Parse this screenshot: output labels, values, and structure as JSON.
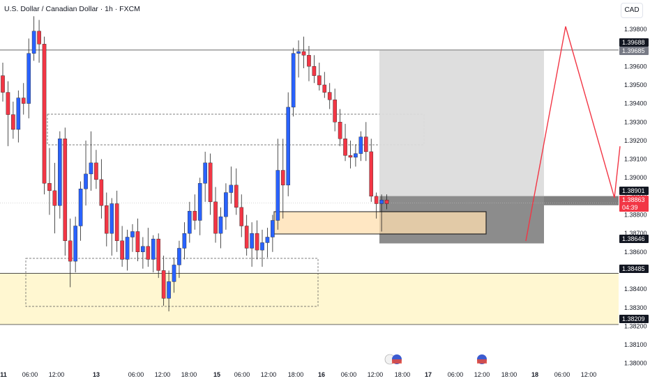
{
  "header": {
    "title": "U.S. Dollar / Canadian Dollar · 1h · FXCM",
    "currency": "CAD"
  },
  "colors": {
    "up": "#2962ff",
    "down": "#f23645",
    "demand_zone": "#fff7d1",
    "entry_zone": "#ffdfb0",
    "stop_zone": "#808080",
    "target_zone": "#dcdcdc",
    "projection": "#f23645"
  },
  "chart_data": {
    "type": "candlestick",
    "symbol": "USDCAD",
    "timeframe": "1h",
    "ylim": [
      1.3796,
      1.399
    ],
    "y_ticks": [
      "1.39800",
      "1.39700",
      "1.39600",
      "1.39500",
      "1.39400",
      "1.39300",
      "1.39200",
      "1.39100",
      "1.39000",
      "1.38900",
      "1.38800",
      "1.38700",
      "1.38600",
      "1.38500",
      "1.38400",
      "1.38300",
      "1.38200",
      "1.38100",
      "1.38000"
    ],
    "x_labels": [
      "11",
      "06:00",
      "12:00",
      "13",
      "06:00",
      "12:00",
      "18:00",
      "15",
      "06:00",
      "12:00",
      "18:00",
      "16",
      "06:00",
      "12:00",
      "18:00",
      "17",
      "06:00",
      "12:00",
      "18:00",
      "18",
      "06:00",
      "12:00"
    ],
    "price_tags": [
      {
        "value": "1.39688",
        "style": "dark"
      },
      {
        "value": "1.39685",
        "style": "gray"
      },
      {
        "value": "1.38901",
        "style": "dark"
      },
      {
        "value": "1.38863",
        "style": "red"
      },
      {
        "value": "04:39",
        "style": "red"
      },
      {
        "value": "1.38646",
        "style": "dark"
      },
      {
        "value": "1.38485",
        "style": "dark"
      },
      {
        "value": "1.38209",
        "style": "dark"
      }
    ],
    "levels": {
      "resistance": 1.39688,
      "support_top": 1.38485,
      "support_bottom": 1.38209,
      "current": 1.38863,
      "entry": 1.38901,
      "stop": 1.38646,
      "target": 1.39685
    },
    "candles": [
      [
        1.3955,
        1.3962,
        1.3941,
        1.3946
      ],
      [
        1.3946,
        1.3952,
        1.3917,
        1.3934
      ],
      [
        1.3934,
        1.3941,
        1.3921,
        1.3926
      ],
      [
        1.3926,
        1.3947,
        1.3919,
        1.3943
      ],
      [
        1.3943,
        1.3951,
        1.3934,
        1.394
      ],
      [
        1.394,
        1.3975,
        1.3932,
        1.3967
      ],
      [
        1.3967,
        1.3987,
        1.3963,
        1.3979
      ],
      [
        1.3979,
        1.3985,
        1.3962,
        1.3972
      ],
      [
        1.3972,
        1.3976,
        1.3891,
        1.3897
      ],
      [
        1.3897,
        1.3916,
        1.388,
        1.3893
      ],
      [
        1.3893,
        1.3908,
        1.387,
        1.3885
      ],
      [
        1.3885,
        1.3925,
        1.3878,
        1.3921
      ],
      [
        1.3921,
        1.3927,
        1.3858,
        1.3866
      ],
      [
        1.3866,
        1.3878,
        1.3841,
        1.3855
      ],
      [
        1.3855,
        1.3879,
        1.3849,
        1.3874
      ],
      [
        1.3874,
        1.3898,
        1.3866,
        1.3894
      ],
      [
        1.3894,
        1.392,
        1.3885,
        1.3902
      ],
      [
        1.3902,
        1.3925,
        1.3893,
        1.3908
      ],
      [
        1.3908,
        1.3915,
        1.3894,
        1.3899
      ],
      [
        1.3899,
        1.391,
        1.3878,
        1.3885
      ],
      [
        1.3885,
        1.3892,
        1.3863,
        1.387
      ],
      [
        1.387,
        1.3889,
        1.3858,
        1.3886
      ],
      [
        1.3886,
        1.3893,
        1.386,
        1.3866
      ],
      [
        1.3866,
        1.3874,
        1.3852,
        1.3856
      ],
      [
        1.3856,
        1.3872,
        1.385,
        1.3868
      ],
      [
        1.3868,
        1.3875,
        1.386,
        1.3871
      ],
      [
        1.3871,
        1.3878,
        1.3855,
        1.386
      ],
      [
        1.386,
        1.3868,
        1.3851,
        1.3863
      ],
      [
        1.3863,
        1.3873,
        1.3852,
        1.3856
      ],
      [
        1.3856,
        1.3869,
        1.3849,
        1.3867
      ],
      [
        1.3867,
        1.387,
        1.3846,
        1.385
      ],
      [
        1.385,
        1.3858,
        1.3831,
        1.3835
      ],
      [
        1.3835,
        1.385,
        1.3828,
        1.3844
      ],
      [
        1.3844,
        1.3857,
        1.3838,
        1.3853
      ],
      [
        1.3853,
        1.3866,
        1.3846,
        1.3862
      ],
      [
        1.3862,
        1.3876,
        1.3856,
        1.387
      ],
      [
        1.387,
        1.3887,
        1.3865,
        1.3882
      ],
      [
        1.3882,
        1.3891,
        1.3872,
        1.3877
      ],
      [
        1.3877,
        1.39,
        1.3869,
        1.3897
      ],
      [
        1.3897,
        1.3914,
        1.3887,
        1.3908
      ],
      [
        1.3908,
        1.3913,
        1.388,
        1.3887
      ],
      [
        1.3887,
        1.3895,
        1.3865,
        1.387
      ],
      [
        1.387,
        1.3884,
        1.3862,
        1.3879
      ],
      [
        1.3879,
        1.3897,
        1.3872,
        1.3892
      ],
      [
        1.3892,
        1.3906,
        1.3886,
        1.3896
      ],
      [
        1.3896,
        1.3905,
        1.388,
        1.3884
      ],
      [
        1.3884,
        1.3891,
        1.3868,
        1.3874
      ],
      [
        1.3874,
        1.388,
        1.3858,
        1.3862
      ],
      [
        1.3862,
        1.3876,
        1.3852,
        1.387
      ],
      [
        1.387,
        1.3877,
        1.3856,
        1.3861
      ],
      [
        1.3861,
        1.3872,
        1.3852,
        1.3865
      ],
      [
        1.3865,
        1.3873,
        1.3857,
        1.3868
      ],
      [
        1.3868,
        1.388,
        1.386,
        1.3877
      ],
      [
        1.3877,
        1.3921,
        1.3872,
        1.3904
      ],
      [
        1.3904,
        1.3921,
        1.3878,
        1.3896
      ],
      [
        1.3896,
        1.3946,
        1.389,
        1.3938
      ],
      [
        1.3938,
        1.397,
        1.3933,
        1.3967
      ],
      [
        1.3967,
        1.3974,
        1.3954,
        1.3968
      ],
      [
        1.3968,
        1.3976,
        1.3959,
        1.3966
      ],
      [
        1.3966,
        1.3971,
        1.3952,
        1.396
      ],
      [
        1.396,
        1.3966,
        1.3951,
        1.3955
      ],
      [
        1.3955,
        1.3962,
        1.3947,
        1.395
      ],
      [
        1.395,
        1.3957,
        1.3943,
        1.3946
      ],
      [
        1.3946,
        1.3951,
        1.3937,
        1.3942
      ],
      [
        1.3942,
        1.3948,
        1.3925,
        1.393
      ],
      [
        1.393,
        1.3937,
        1.3917,
        1.3921
      ],
      [
        1.3921,
        1.3929,
        1.3909,
        1.3912
      ],
      [
        1.3912,
        1.392,
        1.3905,
        1.3911
      ],
      [
        1.3911,
        1.3918,
        1.3906,
        1.3913
      ],
      [
        1.3913,
        1.3925,
        1.3909,
        1.3922
      ],
      [
        1.3922,
        1.393,
        1.3909,
        1.3914
      ],
      [
        1.3914,
        1.3921,
        1.3887,
        1.389
      ],
      [
        1.389,
        1.3892,
        1.3878,
        1.3886
      ],
      [
        1.3886,
        1.3891,
        1.3871,
        1.3888
      ],
      [
        1.3888,
        1.3891,
        1.3883,
        1.3886
      ]
    ]
  }
}
